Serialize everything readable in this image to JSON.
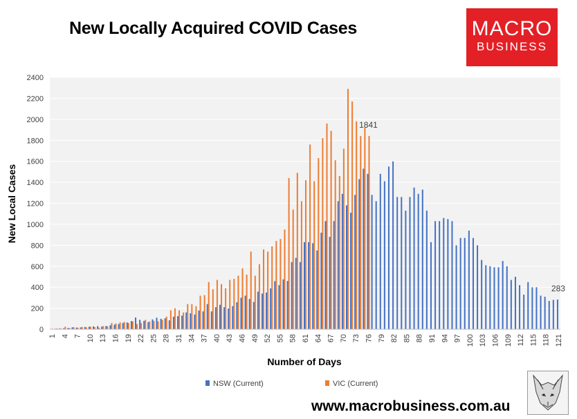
{
  "header": {
    "title": "New Locally Acquired COVID Cases"
  },
  "logo": {
    "line1": "MACRO",
    "line2": "BUSINESS"
  },
  "footer": {
    "url": "www.macrobusiness.com.au"
  },
  "colors": {
    "nsw": "#4472c4",
    "vic": "#ed7d31",
    "plot_bg": "#f2f2f2",
    "grid": "#ffffff",
    "brand": "#e32026"
  },
  "chart_data": {
    "type": "bar",
    "title": "New Locally Acquired COVID Cases",
    "xlabel": "Number of Days",
    "ylabel": "New Local Cases",
    "ylim": [
      0,
      2400
    ],
    "yticks": [
      0,
      200,
      400,
      600,
      800,
      1000,
      1200,
      1400,
      1600,
      1800,
      2000,
      2200,
      2400
    ],
    "xtick_step": 3,
    "grid": true,
    "legend_position": "bottom",
    "annotations": [
      {
        "label": "1841",
        "series": "VIC (Current)",
        "x": 76
      },
      {
        "label": "283",
        "series": "NSW (Current)",
        "x": 121
      }
    ],
    "series": [
      {
        "name": "NSW (Current)",
        "x": [
          1,
          2,
          3,
          4,
          5,
          6,
          7,
          8,
          9,
          10,
          11,
          12,
          13,
          14,
          15,
          16,
          17,
          18,
          19,
          20,
          21,
          22,
          23,
          24,
          25,
          26,
          27,
          28,
          29,
          30,
          31,
          32,
          33,
          34,
          35,
          36,
          37,
          38,
          39,
          40,
          41,
          42,
          43,
          44,
          45,
          46,
          47,
          48,
          49,
          50,
          51,
          52,
          53,
          54,
          55,
          56,
          57,
          58,
          59,
          60,
          61,
          62,
          63,
          64,
          65,
          66,
          67,
          68,
          69,
          70,
          71,
          72,
          73,
          74,
          75,
          76,
          77,
          78,
          79,
          80,
          81,
          82,
          83,
          84,
          85,
          86,
          87,
          88,
          89,
          90,
          91,
          92,
          93,
          94,
          95,
          96,
          97,
          98,
          99,
          100,
          101,
          102,
          103,
          104,
          105,
          106,
          107,
          108,
          109,
          110,
          111,
          112,
          113,
          114,
          115,
          116,
          117,
          118,
          119,
          120,
          121
        ],
        "values": [
          3,
          5,
          8,
          10,
          12,
          18,
          16,
          18,
          22,
          24,
          27,
          30,
          25,
          31,
          38,
          44,
          50,
          60,
          65,
          78,
          112,
          90,
          80,
          68,
          94,
          110,
          100,
          105,
          85,
          120,
          125,
          130,
          160,
          152,
          140,
          178,
          170,
          240,
          170,
          210,
          233,
          210,
          198,
          220,
          257,
          300,
          320,
          288,
          260,
          358,
          340,
          350,
          390,
          458,
          420,
          475,
          460,
          640,
          680,
          640,
          830,
          830,
          820,
          750,
          920,
          1030,
          880,
          1030,
          1220,
          1290,
          1180,
          1110,
          1280,
          1430,
          1530,
          1480,
          1280,
          1220,
          1480,
          1410,
          1550,
          1599,
          1260,
          1260,
          1130,
          1260,
          1350,
          1290,
          1330,
          1130,
          830,
          1030,
          1030,
          1060,
          1050,
          1030,
          800,
          870,
          870,
          940,
          870,
          800,
          660,
          610,
          600,
          590,
          590,
          650,
          600,
          470,
          500,
          420,
          330,
          450,
          400,
          400,
          320,
          310,
          270,
          280,
          283
        ]
      },
      {
        "name": "VIC (Current)",
        "x": [
          1,
          2,
          3,
          4,
          5,
          6,
          7,
          8,
          9,
          10,
          11,
          12,
          13,
          14,
          15,
          16,
          17,
          18,
          19,
          20,
          21,
          22,
          23,
          24,
          25,
          26,
          27,
          28,
          29,
          30,
          31,
          32,
          33,
          34,
          35,
          36,
          37,
          38,
          39,
          40,
          41,
          42,
          43,
          44,
          45,
          46,
          47,
          48,
          49,
          50,
          51,
          52,
          53,
          54,
          55,
          56,
          57,
          58,
          59,
          60,
          61,
          62,
          63,
          64,
          65,
          66,
          67,
          68,
          69,
          70,
          71,
          72,
          73,
          74,
          75,
          76
        ],
        "values": [
          5,
          8,
          6,
          25,
          12,
          20,
          15,
          22,
          18,
          25,
          20,
          15,
          30,
          28,
          60,
          55,
          65,
          70,
          60,
          75,
          50,
          60,
          90,
          75,
          80,
          75,
          90,
          120,
          180,
          200,
          180,
          160,
          240,
          240,
          220,
          320,
          325,
          450,
          380,
          470,
          430,
          390,
          470,
          480,
          510,
          580,
          520,
          740,
          510,
          620,
          760,
          740,
          790,
          840,
          860,
          950,
          1440,
          1140,
          1490,
          1220,
          1420,
          1760,
          1410,
          1630,
          1820,
          1960,
          1890,
          1610,
          1460,
          1720,
          2290,
          2170,
          1980,
          1840,
          1920,
          1841
        ]
      }
    ]
  }
}
